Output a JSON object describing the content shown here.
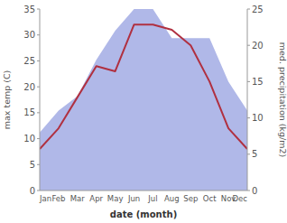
{
  "chart_data": {
    "type": "line",
    "xlabel": "date (month)",
    "ylabel": "max temp (C)",
    "y2label": "med. precipitation (kg/m2)",
    "categories": [
      "Jan",
      "Feb",
      "Mar",
      "Apr",
      "May",
      "Jun",
      "Jul",
      "Aug",
      "Sep",
      "Oct",
      "Nov",
      "Dec"
    ],
    "series": [
      {
        "type": "area",
        "axis": "y2",
        "color": "#b0b8e8",
        "values": [
          8,
          11,
          13,
          18,
          22,
          25,
          25,
          21,
          21,
          21,
          15,
          11
        ]
      },
      {
        "type": "line",
        "color": "#b03040",
        "values": [
          8,
          12,
          18,
          24,
          23,
          32,
          32,
          31,
          28,
          21,
          12,
          8
        ]
      }
    ],
    "ylim": [
      0,
      35
    ],
    "yticks": [
      0,
      5,
      10,
      15,
      20,
      25,
      30,
      35
    ],
    "y2lim": [
      0,
      25
    ],
    "y2ticks": [
      0,
      5,
      10,
      15,
      20,
      25
    ],
    "grid": false
  }
}
